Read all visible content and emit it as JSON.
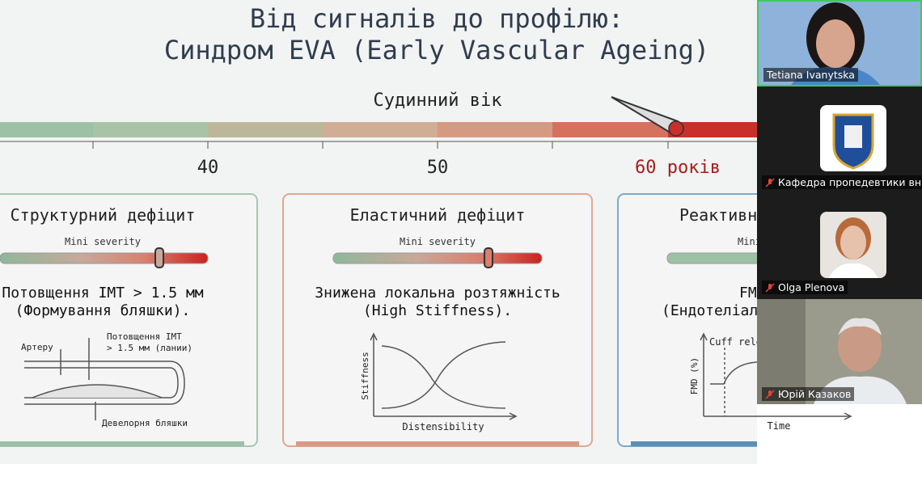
{
  "slide": {
    "title": [
      "Від сигналів до профілю:",
      "Синдром EVA (Early Vascular Ageing)"
    ],
    "scale": {
      "label": "Судинний вік",
      "ticks": [
        "40",
        "50",
        "60 років"
      ]
    },
    "cards": [
      {
        "title": "Структурний дефіцит",
        "severity_label": "Mini severity",
        "text": [
          "Потовщення IMT > 1.5 мм",
          "(Формування бляшки)."
        ],
        "diagram_labels": [
          "Артеру",
          "Потовщення IMT",
          "> 1.5 мм (лании)",
          "Девелорня бляшки"
        ]
      },
      {
        "title": "Еластичний дефіцит",
        "severity_label": "Mini severity",
        "text": [
          "Знижена локальна розтяжність",
          "(High Stiffness)."
        ],
        "diagram_labels": [
          "Stiffness",
          "Distensibility"
        ]
      },
      {
        "title": "Реактивн",
        "severity_label": "Mini",
        "text": [
          "FM",
          "(Ендотеліаль"
        ],
        "diagram_labels": [
          "Cuff rele",
          "FMD (%)",
          "Time"
        ]
      }
    ]
  },
  "participants": [
    {
      "name": "Tetiana Ivanytska"
    },
    {
      "name": "Кафедра пропедевтики вн. ме"
    },
    {
      "name": "Olga Plenova"
    },
    {
      "name": "Юрій Казаков"
    }
  ]
}
